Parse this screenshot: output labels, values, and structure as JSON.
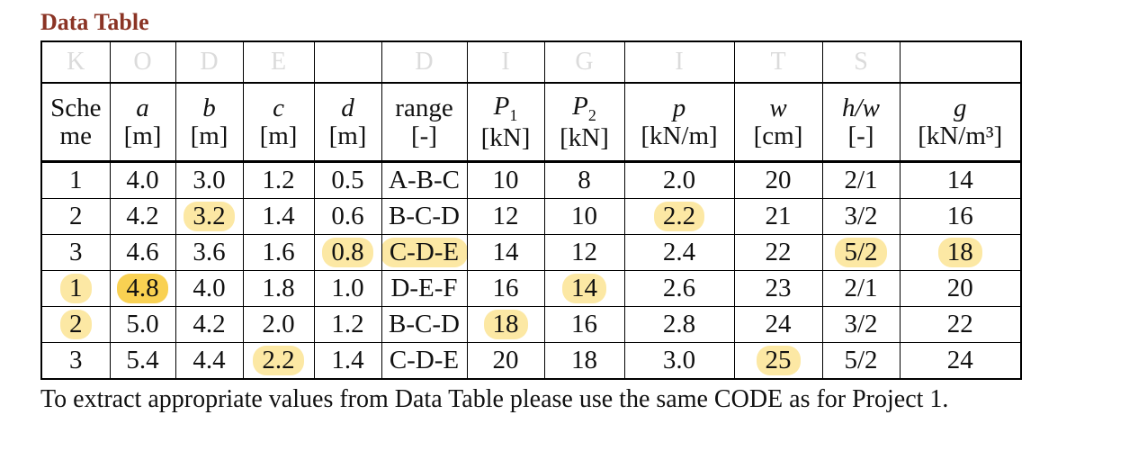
{
  "title": "Data Table",
  "footer": "To extract appropriate values from Data Table please use the same CODE as for Project 1.",
  "colors": {
    "title_text": "#8b3425",
    "code_letters": "#dbdbdb",
    "highlight_light": "#fce8a4",
    "highlight_dark": "#f9d152"
  },
  "table": {
    "code_row": [
      "K",
      "O",
      "D",
      "E",
      "",
      "D",
      "I",
      "G",
      "I",
      "T",
      "S",
      ""
    ],
    "columns": [
      {
        "name": "Scheme",
        "unit": "",
        "italic": false
      },
      {
        "name": "a",
        "unit": "[m]",
        "italic": true
      },
      {
        "name": "b",
        "unit": "[m]",
        "italic": true
      },
      {
        "name": "c",
        "unit": "[m]",
        "italic": true
      },
      {
        "name": "d",
        "unit": "[m]",
        "italic": true
      },
      {
        "name": "range",
        "unit": "[-]",
        "italic": false
      },
      {
        "name": "P_1",
        "unit": "[kN]",
        "italic": true
      },
      {
        "name": "P_2",
        "unit": "[kN]",
        "italic": true
      },
      {
        "name": "p",
        "unit": "[kN/m]",
        "italic": true
      },
      {
        "name": "w",
        "unit": "[cm]",
        "italic": true
      },
      {
        "name": "h/w",
        "unit": "[-]",
        "italic": true
      },
      {
        "name": "g",
        "unit": "[kN/m³]",
        "italic": true
      }
    ],
    "rows": [
      [
        "1",
        "4.0",
        "3.0",
        "1.2",
        "0.5",
        "A-B-C",
        "10",
        "8",
        "2.0",
        "20",
        "2/1",
        "14"
      ],
      [
        "2",
        "4.2",
        "3.2",
        "1.4",
        "0.6",
        "B-C-D",
        "12",
        "10",
        "2.2",
        "21",
        "3/2",
        "16"
      ],
      [
        "3",
        "4.6",
        "3.6",
        "1.6",
        "0.8",
        "C-D-E",
        "14",
        "12",
        "2.4",
        "22",
        "5/2",
        "18"
      ],
      [
        "1",
        "4.8",
        "4.0",
        "1.8",
        "1.0",
        "D-E-F",
        "16",
        "14",
        "2.6",
        "23",
        "2/1",
        "20"
      ],
      [
        "2",
        "5.0",
        "4.2",
        "2.0",
        "1.2",
        "B-C-D",
        "18",
        "16",
        "2.8",
        "24",
        "3/2",
        "22"
      ],
      [
        "3",
        "5.4",
        "4.4",
        "2.2",
        "1.4",
        "C-D-E",
        "20",
        "18",
        "3.0",
        "25",
        "5/2",
        "24"
      ]
    ],
    "highlights": [
      {
        "row": 1,
        "col": 2,
        "type": "light"
      },
      {
        "row": 1,
        "col": 8,
        "type": "light"
      },
      {
        "row": 2,
        "col": 4,
        "type": "light"
      },
      {
        "row": 2,
        "col": 5,
        "type": "light"
      },
      {
        "row": 2,
        "col": 10,
        "type": "light"
      },
      {
        "row": 2,
        "col": 11,
        "type": "light"
      },
      {
        "row": 3,
        "col": 0,
        "type": "light"
      },
      {
        "row": 3,
        "col": 1,
        "type": "dark"
      },
      {
        "row": 3,
        "col": 7,
        "type": "light"
      },
      {
        "row": 4,
        "col": 0,
        "type": "light"
      },
      {
        "row": 4,
        "col": 6,
        "type": "light"
      },
      {
        "row": 5,
        "col": 3,
        "type": "light"
      },
      {
        "row": 5,
        "col": 9,
        "type": "light"
      }
    ]
  }
}
